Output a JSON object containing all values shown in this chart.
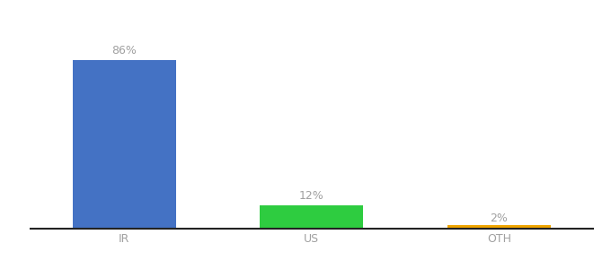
{
  "categories": [
    "IR",
    "US",
    "OTH"
  ],
  "values": [
    86,
    12,
    2
  ],
  "bar_colors": [
    "#4472c4",
    "#2ecc40",
    "#f0a500"
  ],
  "value_labels": [
    "86%",
    "12%",
    "2%"
  ],
  "background_color": "#ffffff",
  "label_color": "#a0a0a0",
  "ylim": [
    0,
    100
  ],
  "bar_width": 0.55,
  "tick_fontsize": 9,
  "value_fontsize": 9,
  "x_positions": [
    0.5,
    1.5,
    2.5
  ]
}
